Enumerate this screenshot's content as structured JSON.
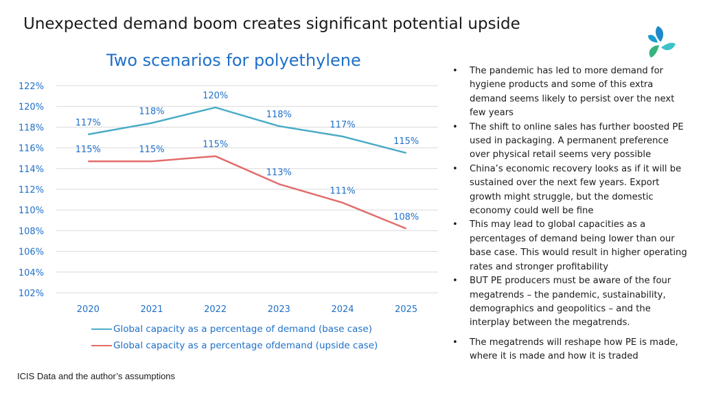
{
  "slide": {
    "title": "Unexpected demand boom creates significant potential upside",
    "source": "ICIS Data and the author’s assumptions"
  },
  "logo": {
    "icon": "triskele-logo-icon",
    "colors": [
      "#1e88c8",
      "#3cc3c8",
      "#36b37e"
    ]
  },
  "chart_data": {
    "type": "line",
    "title": "Two scenarios for polyethylene",
    "categories": [
      "2020",
      "2021",
      "2022",
      "2023",
      "2024",
      "2025"
    ],
    "ylim": [
      102,
      122
    ],
    "yticks": [
      "102%",
      "104%",
      "106%",
      "108%",
      "110%",
      "112%",
      "114%",
      "116%",
      "118%",
      "120%",
      "122%"
    ],
    "grid": true,
    "legend_position": "bottom",
    "series": [
      {
        "name": "Global capacity as a percentage of demand (base case)",
        "color": "#4bacc6",
        "values": [
          117.3,
          118.4,
          119.9,
          118.1,
          117.1,
          115.5
        ],
        "labels": [
          "117%",
          "118%",
          "120%",
          "118%",
          "117%",
          "115%"
        ]
      },
      {
        "name": "Global capacity as a percentage ofdemand (upside case)",
        "color": "#e26b6b",
        "values": [
          114.7,
          114.7,
          115.2,
          112.5,
          110.7,
          108.2
        ],
        "labels": [
          "115%",
          "115%",
          "115%",
          "113%",
          "111%",
          "108%"
        ]
      }
    ],
    "text_color": "#1f6fc7"
  },
  "bullets": [
    "The pandemic has led to more demand for hygiene products and some of this extra demand seems likely to persist over the next few years",
    "The shift to online sales has further boosted PE used in packaging. A permanent preference  over physical retail seems very possible",
    "China’s economic recovery looks as if it will be sustained over the next few years. Export growth might struggle, but the domestic economy could well be fine",
    "This may lead to global capacities as a percentages of demand being lower than our base case. This would result in higher operating rates and stronger profitability",
    "BUT PE producers must be aware of the four megatrends – the pandemic, sustainability, demographics and geopolitics – and the interplay between the megatrends.",
    "The megatrends will reshape how PE is made, where it is made and how it is traded"
  ]
}
